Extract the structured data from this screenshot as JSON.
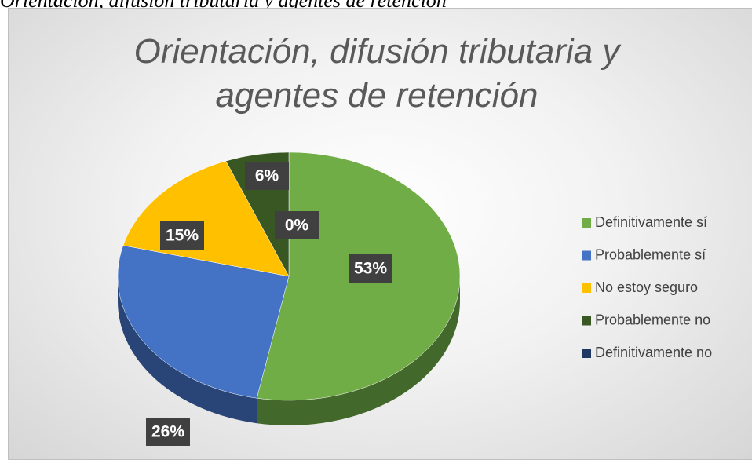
{
  "caption": "Orientación, difusión tributaria y agentes de retención",
  "chart_data": {
    "type": "pie3d",
    "title": "Orientación, difusión tributaria y agentes de retención",
    "categories": [
      "Definitivamente sí",
      "Probablemente sí",
      "No estoy seguro",
      "Probablemente no",
      "Definitivamente no"
    ],
    "values": [
      53,
      26,
      15,
      6,
      0
    ],
    "value_labels": [
      "53%",
      "26%",
      "15%",
      "6%",
      "0%"
    ],
    "colors": [
      "#70ad47",
      "#4472c4",
      "#ffc000",
      "#385723",
      "#203864"
    ],
    "legend": "right"
  }
}
